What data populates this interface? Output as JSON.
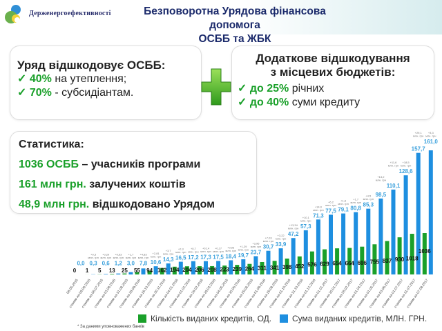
{
  "header": {
    "org": "Держенергоефективності",
    "title_line1": "Безповоротна Урядова фінансова допомога",
    "title_line2": "ОСББ та ЖБК"
  },
  "box_gov": {
    "heading": "Уряд відшкодовує ОСББ:",
    "items": [
      {
        "value": "40%",
        "text": " на утеплення;"
      },
      {
        "value": "70%",
        "text": " - субсидіантам."
      }
    ]
  },
  "box_local": {
    "heading_line1": "Додаткове відшкодування",
    "heading_line2": "з місцевих бюджетів:",
    "items": [
      {
        "value": "до 25%",
        "text": " річних"
      },
      {
        "value": "до 40%",
        "text": " суми кредиту"
      }
    ]
  },
  "stats": {
    "heading": "Статистика:",
    "lines": [
      {
        "value": "1036 ОСББ",
        "text": " – учасників програми"
      },
      {
        "value": "161 млн грн.",
        "text": " залучених коштів"
      },
      {
        "value": "48,9 млн грн.",
        "text": " відшкодовано Урядом"
      }
    ]
  },
  "colors": {
    "green": "#1aa02a",
    "blue": "#1e8fe0",
    "dark": "#1b2a6b"
  },
  "chart_data": {
    "type": "bar",
    "categories": [
      "08.05.2015",
      "станом на 08.06.2015",
      "станом на 06.07.2015",
      "станом на 03.08.2015",
      "станом на 31.08.2015",
      "станом на 28.09.2015",
      "станом на 26.10.2015",
      "станом на 30.11.2015",
      "станом на 04.01.2016",
      "станом на 01.02.2016",
      "станом на 29.02.2016",
      "станом на 28.03.2016",
      "станом на 04.05.2016",
      "станом на 30.05.2016",
      "станом на 29.06.2016",
      "станом на 01.08.2016",
      "станом на 29.08.2016",
      "станом на 01.10.2016",
      "станом на 31.10.2016",
      "станом на 01.12.2016",
      "станом на 01.01.2017",
      "станом на 30.01.2017",
      "станом на 28.02.2017",
      "станом на 01.04.2017",
      "станом на 01.05.2017",
      "станом на 03.06.2017",
      "станом на 01.07.2017",
      "станом на 31.07.2017",
      "станом на 07.08.2017"
    ],
    "series": [
      {
        "name": "Кількість виданих кредитів, ОД.",
        "color": "#1aa02a",
        "values": [
          0,
          1,
          5,
          13,
          25,
          55,
          94,
          162,
          194,
          204,
          206,
          208,
          223,
          239,
          264,
          311,
          341,
          398,
          452,
          576,
          629,
          654,
          664,
          696,
          755,
          837,
          930,
          1018,
          1036
        ],
        "labels": [
          "0",
          "1",
          "5",
          "13",
          "25",
          "55",
          "94",
          "162",
          "194",
          "204",
          "206",
          "208",
          "223",
          "239",
          "264",
          "311",
          "341",
          "398",
          "452",
          "576",
          "629",
          "654",
          "664",
          "696",
          "755",
          "837",
          "930",
          "1018",
          "1036"
        ]
      },
      {
        "name": "Сума виданих кредитів, МЛН. ГРН.",
        "color": "#1e8fe0",
        "values": [
          0.0,
          0.3,
          0.6,
          1.2,
          3.0,
          7.8,
          10.6,
          14.3,
          16.5,
          17.2,
          17.3,
          17.5,
          18.4,
          19.7,
          23.7,
          30.7,
          33.9,
          47.2,
          57.3,
          71.3,
          77.5,
          79.1,
          80.8,
          85.3,
          98.5,
          110.1,
          128.6,
          157.7,
          161.0
        ],
        "labels": [
          "0,0",
          "0,3",
          "0,6",
          "1,2",
          "3,0",
          "7,8",
          "10,6",
          "14,3",
          "16,5",
          "17,2",
          "17,3",
          "17,5",
          "18,4",
          "19,7",
          "23,7",
          "30,7",
          "33,9",
          "47,2",
          "57,3",
          "71,3",
          "77,5",
          "79,1",
          "80,8",
          "85,3",
          "98,5",
          "110,1",
          "128,6",
          "157,7",
          "161,0"
        ]
      }
    ],
    "increments": [
      "",
      "+0,3 млн. грн",
      "+0,29 млн. грн",
      "+0,63 млн. грн",
      "+1,7 млн. грн",
      "+4,83 млн. грн",
      "+2,81 млн. грн",
      "+3,7 млн. грн",
      "+2,3 млн. грн",
      "+0,7 млн. грн",
      "+0,14 млн. грн",
      "+0,17 млн. грн",
      "+0,93 млн. грн",
      "+1,29 млн. грн",
      "+3,96 млн. грн",
      "+7,03 млн. грн",
      "+3,22 млн. грн",
      "+13,34 млн. грн",
      "+10,1 млн. грн",
      "+14,0 млн. грн",
      "+6,2 млн. грн",
      "+1,6 млн. грн",
      "+1,7 млн. грн",
      "+4,5 млн. грн",
      "+13,2 млн. грн",
      "+11,6 млн. грн",
      "+18,5 млн. грн",
      "+29,1 млн. грн",
      "+3,3 млн. грн"
    ],
    "legend": "bottom",
    "grid": false,
    "footnote": "* За даними уповноважених банків"
  }
}
